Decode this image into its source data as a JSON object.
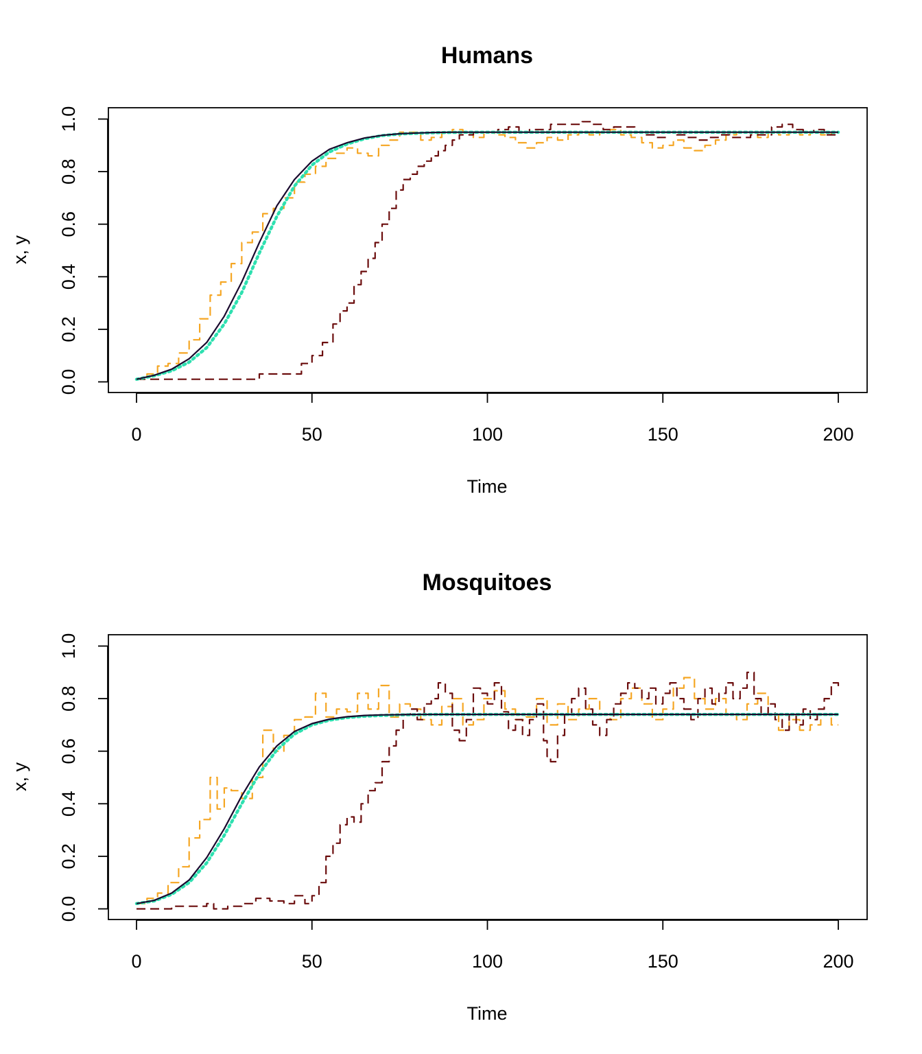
{
  "chart_data": [
    {
      "type": "line",
      "title": "Humans",
      "xlabel": "Time",
      "ylabel": "x, y",
      "xlim": [
        0,
        200
      ],
      "ylim": [
        0,
        1
      ],
      "xticks": [
        0,
        50,
        100,
        150,
        200
      ],
      "yticks": [
        0,
        0.2,
        0.4,
        0.6,
        0.8,
        1
      ],
      "xtick_labels": [
        "0",
        "50",
        "100",
        "150",
        "200"
      ],
      "ytick_labels": [
        "0.0",
        "0.2",
        "0.4",
        "0.6",
        "0.8",
        "1.0"
      ],
      "grid": false,
      "legend": "none",
      "series": [
        {
          "style": "dashed",
          "color": "#f5a623",
          "x": [
            0,
            3,
            6,
            9,
            12,
            15,
            18,
            21,
            24,
            27,
            30,
            33,
            36,
            39,
            42,
            45,
            48,
            51,
            54,
            57,
            60,
            63,
            66,
            69,
            72,
            75,
            78,
            81,
            84,
            87,
            90,
            93,
            96,
            99,
            102,
            105,
            108,
            111,
            114,
            117,
            120,
            123,
            126,
            129,
            132,
            135,
            138,
            141,
            144,
            147,
            150,
            153,
            156,
            159,
            162,
            165,
            168,
            171,
            174,
            177,
            180,
            183,
            186,
            189,
            192,
            195,
            198,
            200
          ],
          "y": [
            0.01,
            0.03,
            0.06,
            0.07,
            0.11,
            0.16,
            0.24,
            0.33,
            0.38,
            0.45,
            0.53,
            0.57,
            0.64,
            0.66,
            0.7,
            0.76,
            0.79,
            0.82,
            0.85,
            0.87,
            0.89,
            0.87,
            0.86,
            0.9,
            0.92,
            0.95,
            0.95,
            0.92,
            0.93,
            0.95,
            0.96,
            0.95,
            0.93,
            0.95,
            0.94,
            0.93,
            0.91,
            0.89,
            0.91,
            0.93,
            0.92,
            0.94,
            0.95,
            0.94,
            0.95,
            0.96,
            0.94,
            0.93,
            0.91,
            0.89,
            0.9,
            0.92,
            0.89,
            0.88,
            0.9,
            0.92,
            0.94,
            0.95,
            0.95,
            0.93,
            0.95,
            0.94,
            0.95,
            0.94,
            0.95,
            0.94,
            0.95,
            0.96
          ]
        },
        {
          "style": "dashed",
          "color": "#6b0d0d",
          "x": [
            0,
            10,
            20,
            30,
            35,
            40,
            44,
            47,
            50,
            53,
            56,
            58,
            60,
            62,
            64,
            66,
            68,
            70,
            72,
            74,
            76,
            78,
            80,
            82,
            84,
            86,
            88,
            90,
            92,
            94,
            96,
            98,
            100,
            103,
            106,
            109,
            112,
            115,
            118,
            121,
            124,
            127,
            130,
            133,
            136,
            139,
            142,
            145,
            148,
            151,
            154,
            157,
            160,
            163,
            166,
            169,
            172,
            175,
            178,
            181,
            184,
            187,
            190,
            193,
            196,
            200
          ],
          "y": [
            0.01,
            0.01,
            0.01,
            0.01,
            0.03,
            0.03,
            0.03,
            0.07,
            0.1,
            0.15,
            0.22,
            0.27,
            0.3,
            0.37,
            0.42,
            0.47,
            0.53,
            0.6,
            0.66,
            0.73,
            0.77,
            0.79,
            0.82,
            0.84,
            0.86,
            0.88,
            0.9,
            0.92,
            0.94,
            0.94,
            0.95,
            0.95,
            0.95,
            0.96,
            0.97,
            0.95,
            0.96,
            0.96,
            0.98,
            0.98,
            0.98,
            0.99,
            0.98,
            0.96,
            0.97,
            0.97,
            0.95,
            0.94,
            0.93,
            0.95,
            0.94,
            0.93,
            0.92,
            0.93,
            0.94,
            0.93,
            0.93,
            0.94,
            0.94,
            0.97,
            0.98,
            0.96,
            0.95,
            0.96,
            0.94,
            0.94
          ]
        },
        {
          "style": "dotted",
          "color": "#2ee0b0",
          "x": [
            0,
            5,
            10,
            15,
            20,
            25,
            30,
            35,
            40,
            45,
            50,
            55,
            60,
            65,
            70,
            75,
            80,
            85,
            90,
            95,
            100,
            110,
            120,
            130,
            140,
            150,
            160,
            170,
            180,
            190,
            200
          ],
          "y": [
            0.01,
            0.023,
            0.042,
            0.075,
            0.13,
            0.22,
            0.34,
            0.49,
            0.63,
            0.745,
            0.825,
            0.875,
            0.905,
            0.925,
            0.937,
            0.943,
            0.946,
            0.948,
            0.949,
            0.95,
            0.95,
            0.95,
            0.95,
            0.95,
            0.95,
            0.95,
            0.95,
            0.95,
            0.95,
            0.95,
            0.95
          ]
        },
        {
          "style": "solid",
          "color": "#1a0a2e",
          "x": [
            0,
            5,
            10,
            15,
            20,
            25,
            30,
            35,
            40,
            45,
            50,
            55,
            60,
            65,
            70,
            75,
            80,
            85,
            90,
            95,
            100,
            110,
            120,
            130,
            140,
            150,
            160,
            170,
            180,
            190,
            200
          ],
          "y": [
            0.01,
            0.025,
            0.048,
            0.088,
            0.15,
            0.25,
            0.38,
            0.53,
            0.67,
            0.77,
            0.84,
            0.885,
            0.91,
            0.928,
            0.938,
            0.944,
            0.947,
            0.949,
            0.95,
            0.95,
            0.95,
            0.95,
            0.95,
            0.95,
            0.95,
            0.95,
            0.95,
            0.95,
            0.95,
            0.95,
            0.95
          ]
        }
      ]
    },
    {
      "type": "line",
      "title": "Mosquitoes",
      "xlabel": "Time",
      "ylabel": "x, y",
      "xlim": [
        0,
        200
      ],
      "ylim": [
        0,
        1
      ],
      "xticks": [
        0,
        50,
        100,
        150,
        200
      ],
      "yticks": [
        0,
        0.2,
        0.4,
        0.6,
        0.8,
        1
      ],
      "xtick_labels": [
        "0",
        "50",
        "100",
        "150",
        "200"
      ],
      "ytick_labels": [
        "0.0",
        "0.2",
        "0.4",
        "0.6",
        "0.8",
        "1.0"
      ],
      "grid": false,
      "legend": "none",
      "series": [
        {
          "style": "dashed",
          "color": "#f5a623",
          "x": [
            0,
            3,
            6,
            9,
            12,
            15,
            18,
            21,
            23,
            25,
            27,
            30,
            33,
            36,
            39,
            42,
            45,
            48,
            51,
            54,
            57,
            60,
            63,
            66,
            69,
            72,
            75,
            78,
            81,
            84,
            87,
            90,
            93,
            96,
            99,
            102,
            105,
            108,
            111,
            114,
            117,
            120,
            123,
            126,
            129,
            132,
            135,
            138,
            141,
            144,
            147,
            150,
            153,
            156,
            159,
            162,
            165,
            168,
            171,
            174,
            177,
            180,
            183,
            186,
            189,
            192,
            195,
            198,
            200
          ],
          "y": [
            0.02,
            0.04,
            0.06,
            0.1,
            0.16,
            0.27,
            0.34,
            0.5,
            0.38,
            0.46,
            0.45,
            0.42,
            0.5,
            0.68,
            0.6,
            0.66,
            0.72,
            0.73,
            0.82,
            0.73,
            0.76,
            0.75,
            0.82,
            0.76,
            0.85,
            0.73,
            0.78,
            0.76,
            0.72,
            0.7,
            0.77,
            0.8,
            0.7,
            0.72,
            0.8,
            0.83,
            0.76,
            0.72,
            0.73,
            0.8,
            0.7,
            0.78,
            0.72,
            0.76,
            0.8,
            0.74,
            0.72,
            0.8,
            0.84,
            0.78,
            0.72,
            0.76,
            0.84,
            0.88,
            0.8,
            0.76,
            0.8,
            0.74,
            0.72,
            0.78,
            0.82,
            0.74,
            0.68,
            0.72,
            0.68,
            0.7,
            0.74,
            0.7,
            0.7
          ]
        },
        {
          "style": "dashed",
          "color": "#6b0d0d",
          "x": [
            0,
            10,
            20,
            22,
            26,
            30,
            34,
            38,
            42,
            45,
            48,
            50,
            52,
            54,
            56,
            58,
            60,
            62,
            64,
            66,
            68,
            70,
            72,
            74,
            76,
            78,
            80,
            82,
            84,
            86,
            88,
            90,
            92,
            94,
            96,
            98,
            100,
            102,
            104,
            106,
            108,
            110,
            112,
            114,
            116,
            117,
            118,
            120,
            122,
            124,
            126,
            128,
            130,
            132,
            134,
            136,
            138,
            140,
            142,
            144,
            146,
            148,
            150,
            152,
            154,
            156,
            158,
            160,
            162,
            164,
            166,
            168,
            170,
            172,
            174,
            176,
            178,
            180,
            182,
            184,
            186,
            188,
            190,
            192,
            194,
            196,
            198,
            200
          ],
          "y": [
            0,
            0.01,
            0.02,
            0.0,
            0.01,
            0.02,
            0.04,
            0.03,
            0.02,
            0.05,
            0.02,
            0.05,
            0.1,
            0.2,
            0.25,
            0.32,
            0.35,
            0.33,
            0.4,
            0.45,
            0.48,
            0.56,
            0.62,
            0.68,
            0.74,
            0.76,
            0.72,
            0.78,
            0.8,
            0.86,
            0.82,
            0.68,
            0.64,
            0.72,
            0.84,
            0.82,
            0.78,
            0.86,
            0.75,
            0.68,
            0.72,
            0.66,
            0.72,
            0.78,
            0.64,
            0.58,
            0.56,
            0.66,
            0.74,
            0.8,
            0.84,
            0.76,
            0.7,
            0.66,
            0.72,
            0.78,
            0.82,
            0.86,
            0.84,
            0.8,
            0.84,
            0.78,
            0.82,
            0.86,
            0.8,
            0.76,
            0.72,
            0.8,
            0.84,
            0.78,
            0.82,
            0.86,
            0.8,
            0.84,
            0.9,
            0.8,
            0.74,
            0.78,
            0.72,
            0.68,
            0.74,
            0.7,
            0.76,
            0.72,
            0.76,
            0.8,
            0.86,
            0.84
          ]
        },
        {
          "style": "dotted",
          "color": "#2ee0b0",
          "x": [
            0,
            5,
            10,
            15,
            20,
            25,
            30,
            35,
            40,
            45,
            50,
            55,
            60,
            65,
            70,
            75,
            80,
            85,
            90,
            95,
            100,
            110,
            120,
            130,
            140,
            150,
            160,
            170,
            180,
            190,
            200
          ],
          "y": [
            0.02,
            0.03,
            0.055,
            0.1,
            0.175,
            0.28,
            0.4,
            0.515,
            0.605,
            0.665,
            0.7,
            0.718,
            0.728,
            0.733,
            0.736,
            0.738,
            0.739,
            0.74,
            0.74,
            0.74,
            0.74,
            0.74,
            0.74,
            0.74,
            0.74,
            0.74,
            0.74,
            0.74,
            0.74,
            0.74,
            0.74
          ]
        },
        {
          "style": "solid",
          "color": "#1a0a2e",
          "x": [
            0,
            5,
            10,
            15,
            20,
            25,
            30,
            35,
            40,
            45,
            50,
            55,
            60,
            65,
            70,
            75,
            80,
            85,
            90,
            95,
            100,
            110,
            120,
            130,
            140,
            150,
            160,
            170,
            180,
            190,
            200
          ],
          "y": [
            0.02,
            0.032,
            0.06,
            0.11,
            0.195,
            0.305,
            0.43,
            0.54,
            0.62,
            0.675,
            0.705,
            0.722,
            0.731,
            0.736,
            0.738,
            0.739,
            0.74,
            0.74,
            0.74,
            0.74,
            0.74,
            0.74,
            0.74,
            0.74,
            0.74,
            0.74,
            0.74,
            0.74,
            0.74,
            0.74,
            0.74
          ]
        }
      ]
    }
  ]
}
